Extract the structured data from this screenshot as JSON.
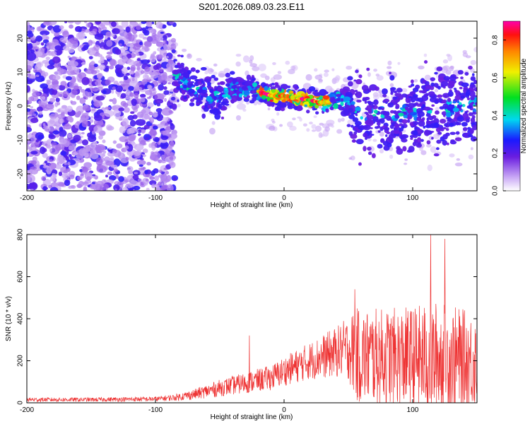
{
  "title": "S201.2026.089.03.23.E11",
  "colors": {
    "snr_line": "#ee3333",
    "frame": "#000000",
    "spectrogram_purple": "#7b1fe0",
    "spectrogram_light": "#cdb4f5"
  },
  "chart_data": [
    {
      "type": "heatmap",
      "title": "S201.2026.089.03.23.E11",
      "xlabel": "Height of straight line (km)",
      "ylabel": "Frequency (Hz)",
      "xlim": [
        -200,
        150
      ],
      "ylim": [
        -25,
        25
      ],
      "xticks": [
        -200,
        -100,
        0,
        100
      ],
      "xtick_labels": [
        "-200",
        "-100",
        "0",
        "100"
      ],
      "yticks": [
        -20,
        -10,
        0,
        10,
        20
      ],
      "ytick_labels": [
        "-20",
        "-10",
        "0",
        "10",
        "20"
      ],
      "colorbar": {
        "label": "Normalized spectral amplitude",
        "range": [
          0,
          0.9
        ],
        "ticks": [
          0.0,
          0.2,
          0.4,
          0.6,
          0.8
        ],
        "tick_labels": [
          "0.0",
          "0.2",
          "0.4",
          "0.6",
          "0.8"
        ]
      },
      "band": {
        "description": "coherent signal band centred near 2-4 Hz from about -85 km to 150 km, peak amplitude near 0 to 25 km",
        "x_range": [
          -85,
          150
        ],
        "center_freq_hz": [
          [
            -85,
            9
          ],
          [
            -70,
            5
          ],
          [
            -55,
            2
          ],
          [
            -40,
            5
          ],
          [
            -25,
            5
          ],
          [
            -10,
            3
          ],
          [
            0,
            3
          ],
          [
            15,
            2
          ],
          [
            30,
            1
          ],
          [
            45,
            2
          ],
          [
            60,
            -3
          ],
          [
            80,
            -2
          ],
          [
            100,
            -2
          ],
          [
            120,
            -1
          ],
          [
            150,
            0
          ]
        ],
        "peak_amplitude": 0.9
      }
    },
    {
      "type": "line",
      "xlabel": "Height of straight line (km)",
      "ylabel": "SNR (10 * v/v)",
      "xlim": [
        -200,
        150
      ],
      "ylim": [
        0,
        800
      ],
      "xticks": [
        -200,
        -100,
        0,
        100
      ],
      "xtick_labels": [
        "-200",
        "-100",
        "0",
        "100"
      ],
      "yticks": [
        0,
        200,
        400,
        600,
        800
      ],
      "ytick_labels": [
        "0",
        "200",
        "400",
        "600",
        "800"
      ],
      "envelope": {
        "x": [
          -200,
          -150,
          -100,
          -85,
          -70,
          -50,
          -30,
          -10,
          0,
          20,
          40,
          50,
          55,
          60,
          80,
          100,
          120,
          150
        ],
        "mean": [
          15,
          15,
          18,
          25,
          40,
          70,
          95,
          120,
          150,
          200,
          240,
          260,
          230,
          220,
          220,
          210,
          210,
          200
        ],
        "spread": [
          10,
          10,
          12,
          15,
          25,
          40,
          50,
          60,
          70,
          90,
          120,
          150,
          220,
          230,
          230,
          250,
          280,
          220
        ]
      },
      "peaks": [
        {
          "x": -27,
          "y": 320
        },
        {
          "x": 114,
          "y": 800
        },
        {
          "x": 125,
          "y": 780
        },
        {
          "x": 55,
          "y": 540
        }
      ]
    }
  ]
}
